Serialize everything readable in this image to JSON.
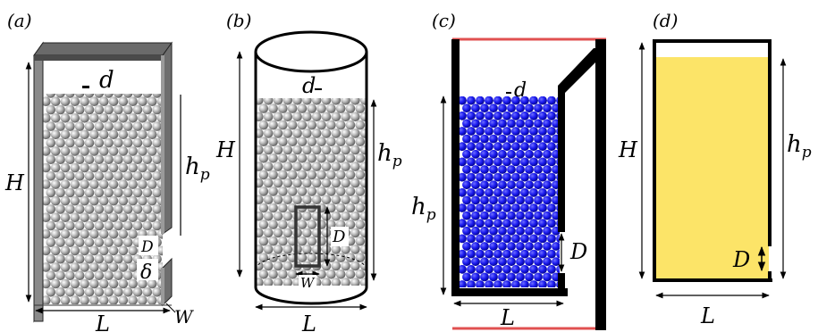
{
  "panels": [
    {
      "label": "(a)",
      "symbols": {
        "d": "d",
        "H": "H",
        "hp_main": "h",
        "hp_sub": "p",
        "D": "D",
        "delta": "δ",
        "L": "L",
        "W": "W"
      }
    },
    {
      "label": "(b)",
      "symbols": {
        "d": "d",
        "H": "H",
        "hp_main": "h",
        "hp_sub": "p",
        "D": "D",
        "W": "W",
        "L": "L"
      }
    },
    {
      "label": "(c)",
      "symbols": {
        "d": "d",
        "hp_main": "h",
        "hp_sub": "p",
        "D": "D",
        "L": "L"
      }
    },
    {
      "label": "(d)",
      "symbols": {
        "H": "H",
        "hp_main": "h",
        "hp_sub": "p",
        "D": "D",
        "L": "L"
      }
    }
  ],
  "colors": {
    "wall_gray": "#808080",
    "wall_dark": "#4a4a4a",
    "bead_gray": "#b8b8b8",
    "bead_blue": "#1c1cf0",
    "boundary_red": "#e05050",
    "fluid_yellow": "#fce468",
    "line_black": "#000000"
  }
}
